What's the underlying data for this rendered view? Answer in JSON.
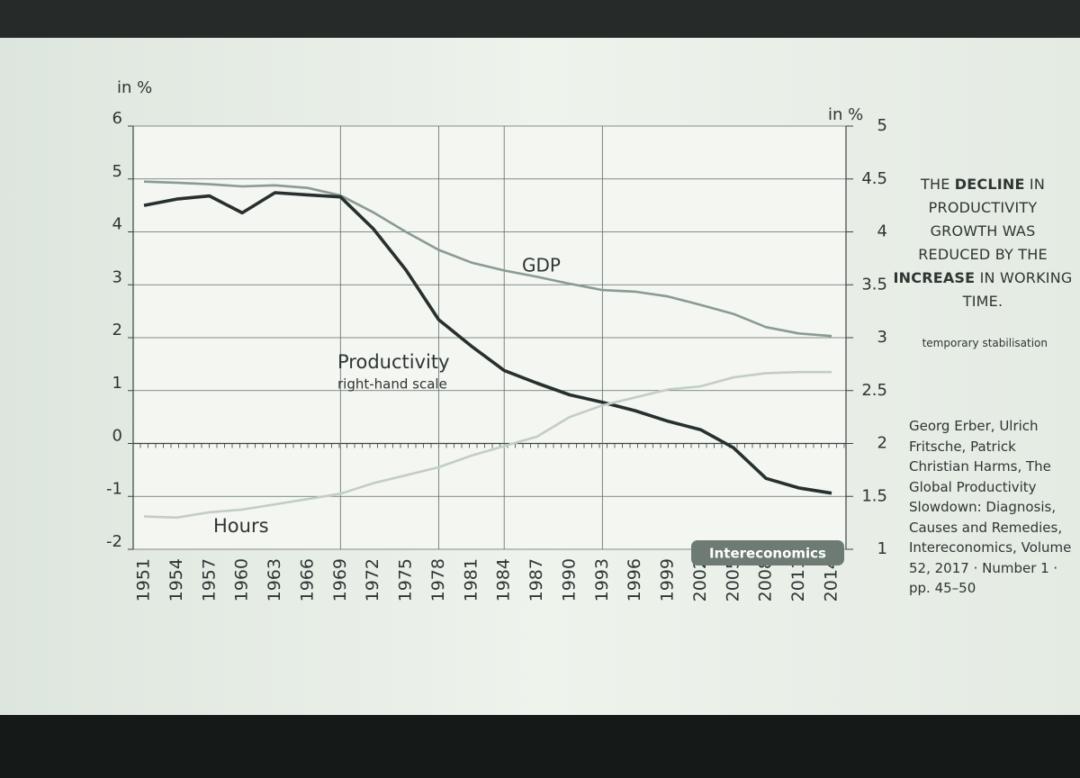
{
  "chart_data": {
    "type": "line",
    "y_axis_label": "in %",
    "y2_axis_label": "in %",
    "categories": [
      "1951",
      "1954",
      "1957",
      "1960",
      "1963",
      "1966",
      "1969",
      "1972",
      "1975",
      "1978",
      "1981",
      "1984",
      "1987",
      "1990",
      "1993",
      "1996",
      "1999",
      "2002",
      "2005",
      "2008",
      "2011",
      "2014"
    ],
    "ylim": [
      -2,
      6
    ],
    "yticks": [
      -2,
      -1,
      0,
      1,
      2,
      3,
      4,
      5,
      6
    ],
    "y2lim": [
      1,
      5
    ],
    "y2ticks": [
      1,
      1.5,
      2,
      2.5,
      3,
      3.5,
      4,
      4.5,
      5
    ],
    "grid": true,
    "x_grid_categories": [
      "1969",
      "1978",
      "1984",
      "1993"
    ],
    "series": [
      {
        "name": "GDP",
        "color": "#8a9a95",
        "values": [
          4.95,
          4.93,
          4.9,
          4.86,
          4.88,
          4.83,
          4.69,
          4.37,
          4.0,
          3.66,
          3.42,
          3.27,
          3.15,
          3.02,
          2.9,
          2.87,
          2.78,
          2.62,
          2.45,
          2.2,
          2.08,
          2.03
        ]
      },
      {
        "name": "Productivity",
        "color": "#27302e",
        "axis": "y2",
        "note": "right-hand scale",
        "values": [
          4.25,
          4.31,
          4.34,
          4.18,
          4.37,
          4.35,
          4.33,
          4.03,
          3.64,
          3.17,
          2.92,
          2.69,
          2.57,
          2.46,
          2.39,
          2.31,
          2.21,
          2.13,
          1.96,
          1.67,
          1.58,
          1.53
        ]
      },
      {
        "name": "Hours",
        "color": "#c3cdc7",
        "values": [
          -1.38,
          -1.4,
          -1.3,
          -1.25,
          -1.15,
          -1.05,
          -0.95,
          -0.75,
          -0.6,
          -0.45,
          -0.23,
          -0.05,
          0.13,
          0.5,
          0.72,
          0.87,
          1.02,
          1.08,
          1.25,
          1.33,
          1.35,
          1.35
        ]
      }
    ],
    "source_badge": "Intereconomics"
  },
  "sidebar": {
    "statement": [
      {
        "text": "THE ",
        "bold": false
      },
      {
        "text": "DECLINE",
        "bold": true
      },
      {
        "text": " IN PRODUCTIVITY GROWTH WAS REDUCED BY THE ",
        "bold": false
      },
      {
        "text": "INCREASE",
        "bold": true
      },
      {
        "text": " IN WORKING TIME.",
        "bold": false
      }
    ],
    "note": "temporary stabilisation",
    "citation": "Georg Erber, Ulrich Fritsche, Patrick Christian Harms, The Global Productivity Slowdown: Diagnosis, Causes and Remedies, Intereconomics, Volume 52, 2017 · Number 1 · pp. 45–50"
  }
}
